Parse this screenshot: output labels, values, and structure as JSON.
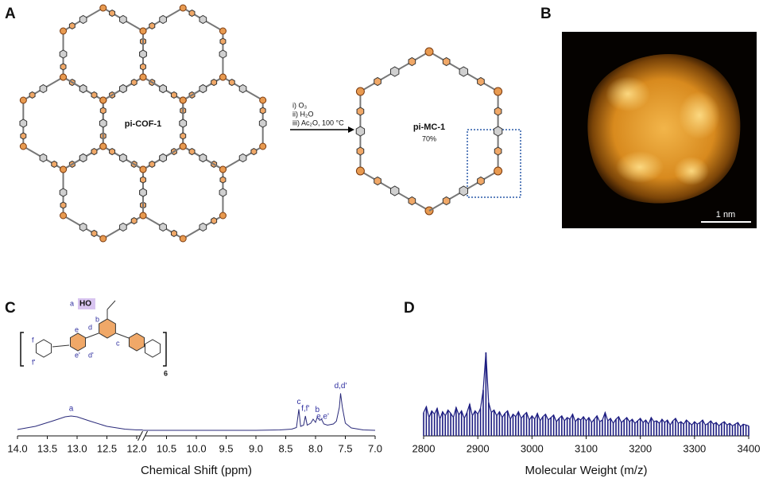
{
  "panels": {
    "a": {
      "label": "A",
      "network_label": "pi-COF-1",
      "conditions": [
        "i) O₃",
        "ii) H₂O",
        "iii) Ac₂O, 100 °C"
      ],
      "product_label": "pi-MC-1",
      "yield": "70%"
    },
    "b": {
      "label": "B",
      "scale_bar": "1 nm"
    },
    "c": {
      "label": "C",
      "acid": "HO",
      "structure_labels": [
        "a",
        "b",
        "c",
        "d",
        "e",
        "d'",
        "e'",
        "f",
        "f'"
      ],
      "repeat": "6"
    },
    "d": {
      "label": "D"
    }
  },
  "chart_data": [
    {
      "type": "line",
      "x_label": "Chemical Shift (ppm)",
      "color": "#2a2a7a",
      "xlim": [
        14.0,
        7.0
      ],
      "xbreak": [
        11.9,
        10.9
      ],
      "xticks": [
        {
          "value": 14.0,
          "label": "14.0"
        },
        13.5,
        {
          "value": 13.0,
          "label": "13.0"
        },
        12.5,
        {
          "value": 12.0,
          "label": "12.0"
        },
        10.5,
        {
          "value": 10.0,
          "label": "10.0"
        },
        9.5,
        {
          "value": 9.0,
          "label": "9.0"
        },
        8.5,
        {
          "value": 8.0,
          "label": "8.0"
        },
        7.5,
        {
          "value": 7.0,
          "label": "7.0"
        }
      ],
      "ylim": [
        0,
        100
      ],
      "x": [
        14.0,
        13.7,
        13.4,
        13.2,
        13.1,
        13.0,
        12.8,
        12.5,
        12.2,
        12.0,
        11.9,
        null,
        10.9,
        10.0,
        9.0,
        8.6,
        8.4,
        8.32,
        8.28,
        8.25,
        8.2,
        8.17,
        8.14,
        8.08,
        8.04,
        8.0,
        7.97,
        7.93,
        7.9,
        7.86,
        7.8,
        7.7,
        7.65,
        7.6,
        7.58,
        7.55,
        7.5,
        7.4,
        7.2,
        7.0
      ],
      "values": [
        4,
        12,
        26,
        36,
        38,
        36,
        26,
        12,
        5,
        3,
        3,
        null,
        2,
        2,
        2,
        3,
        5,
        9,
        55,
        12,
        15,
        38,
        15,
        20,
        30,
        22,
        35,
        27,
        30,
        18,
        15,
        18,
        25,
        60,
        95,
        60,
        20,
        8,
        3,
        2
      ],
      "annotations": [
        {
          "text": "a",
          "x": 13.1
        },
        {
          "text": "c",
          "x": 8.28
        },
        {
          "text": "f,f'",
          "x": 8.17
        },
        {
          "text": "b",
          "x": 7.97
        },
        {
          "text": "e,e'",
          "x": 7.88
        },
        {
          "text": "d,d'",
          "x": 7.58
        }
      ]
    },
    {
      "type": "line",
      "x_label": "Molecular Weight (m/z)",
      "color": "#1c1c80",
      "xlim": [
        2800,
        3400
      ],
      "xticks": [
        2800,
        2900,
        3000,
        3100,
        3200,
        3300,
        3400
      ],
      "ylim": [
        0,
        100
      ],
      "x": [
        2800,
        2805,
        2810,
        2815,
        2820,
        2825,
        2830,
        2835,
        2840,
        2845,
        2850,
        2855,
        2860,
        2865,
        2870,
        2875,
        2880,
        2885,
        2890,
        2895,
        2900,
        2905,
        2910,
        2915,
        2920,
        2925,
        2930,
        2935,
        2940,
        2945,
        2950,
        2955,
        2960,
        2965,
        2970,
        2975,
        2980,
        2985,
        2990,
        2995,
        3000,
        3005,
        3010,
        3015,
        3020,
        3025,
        3030,
        3035,
        3040,
        3045,
        3050,
        3055,
        3060,
        3065,
        3070,
        3075,
        3080,
        3085,
        3090,
        3095,
        3100,
        3105,
        3110,
        3115,
        3120,
        3125,
        3130,
        3135,
        3140,
        3145,
        3150,
        3155,
        3160,
        3165,
        3170,
        3175,
        3180,
        3185,
        3190,
        3195,
        3200,
        3205,
        3210,
        3215,
        3220,
        3225,
        3230,
        3235,
        3240,
        3245,
        3250,
        3255,
        3260,
        3265,
        3270,
        3275,
        3280,
        3285,
        3290,
        3295,
        3300,
        3305,
        3310,
        3315,
        3320,
        3325,
        3330,
        3335,
        3340,
        3345,
        3350,
        3355,
        3360,
        3365,
        3370,
        3375,
        3380,
        3385,
        3390,
        3395,
        3400
      ],
      "values": [
        28,
        35,
        22,
        30,
        26,
        33,
        20,
        29,
        24,
        31,
        27,
        22,
        34,
        25,
        30,
        21,
        28,
        38,
        24,
        30,
        26,
        33,
        55,
        100,
        40,
        28,
        31,
        24,
        29,
        22,
        27,
        30,
        20,
        26,
        23,
        29,
        21,
        25,
        28,
        19,
        24,
        20,
        27,
        18,
        23,
        26,
        19,
        22,
        25,
        17,
        21,
        24,
        18,
        22,
        20,
        26,
        17,
        21,
        19,
        23,
        18,
        22,
        16,
        20,
        24,
        17,
        19,
        28,
        18,
        21,
        15,
        20,
        23,
        16,
        19,
        22,
        17,
        20,
        15,
        18,
        21,
        16,
        19,
        14,
        22,
        17,
        18,
        15,
        20,
        16,
        19,
        13,
        18,
        21,
        15,
        17,
        14,
        19,
        16,
        13,
        17,
        14,
        16,
        19,
        13,
        15,
        18,
        14,
        16,
        12,
        15,
        17,
        13,
        15,
        12,
        14,
        16,
        11,
        14,
        13,
        12
      ]
    }
  ]
}
